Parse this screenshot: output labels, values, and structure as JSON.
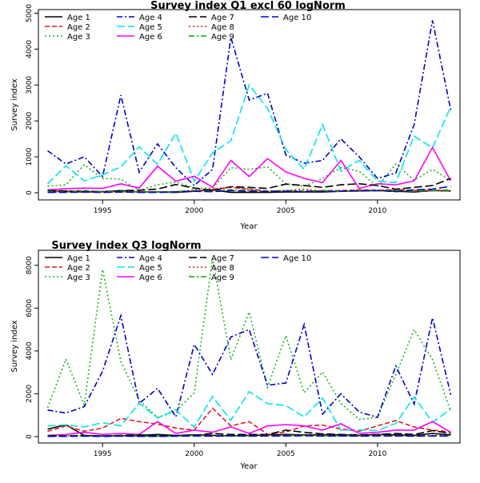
{
  "chart_data": [
    {
      "type": "line",
      "title": "Survey index Q1 excl 60 logNorm",
      "xlabel": "Year",
      "ylabel": "Survey index",
      "xlim": [
        1991.5,
        2014.5
      ],
      "ylim": [
        -200,
        5100
      ],
      "xticks": [
        1995,
        2000,
        2005,
        2010
      ],
      "yticks": [
        0,
        1000,
        2000,
        3000,
        4000,
        5000
      ],
      "legend_position": "top-left",
      "x": [
        1992,
        1993,
        1994,
        1995,
        1996,
        1997,
        1998,
        1999,
        2000,
        2001,
        2002,
        2003,
        2004,
        2005,
        2006,
        2007,
        2008,
        2009,
        2010,
        2011,
        2012,
        2013,
        2014
      ],
      "series": [
        {
          "name": "Age 1",
          "color": "#000000",
          "dash": "solid",
          "values": [
            50,
            40,
            20,
            30,
            60,
            20,
            20,
            10,
            40,
            80,
            10,
            10,
            10,
            20,
            20,
            20,
            40,
            50,
            60,
            40,
            20,
            60,
            50
          ]
        },
        {
          "name": "Age 2",
          "color": "#e41a1c",
          "dash": "dashed",
          "values": [
            40,
            40,
            60,
            20,
            40,
            30,
            20,
            30,
            50,
            100,
            150,
            100,
            50,
            40,
            50,
            60,
            60,
            80,
            70,
            90,
            70,
            60,
            80
          ]
        },
        {
          "name": "Age 3",
          "color": "#1eb41e",
          "dash": "dotted",
          "values": [
            180,
            220,
            780,
            400,
            380,
            60,
            220,
            300,
            130,
            130,
            700,
            650,
            720,
            250,
            180,
            400,
            700,
            600,
            160,
            800,
            350,
            650,
            330
          ]
        },
        {
          "name": "Age 4",
          "color": "#0000cd",
          "dash": "dashdot",
          "values": [
            1170,
            800,
            1000,
            450,
            2720,
            570,
            1360,
            700,
            200,
            650,
            4320,
            2580,
            2770,
            1050,
            820,
            900,
            1500,
            1000,
            400,
            550,
            1900,
            4800,
            2300
          ]
        },
        {
          "name": "Age 5",
          "color": "#00e5ee",
          "dash": "longdash",
          "values": [
            250,
            750,
            330,
            500,
            720,
            1280,
            790,
            1660,
            320,
            1110,
            1450,
            3000,
            2350,
            1200,
            650,
            1900,
            600,
            900,
            330,
            280,
            1580,
            1250,
            2400
          ]
        },
        {
          "name": "Age 6",
          "color": "#ff00ff",
          "dash": "solid",
          "values": [
            80,
            110,
            130,
            120,
            250,
            130,
            740,
            320,
            460,
            150,
            900,
            450,
            950,
            580,
            400,
            280,
            900,
            120,
            250,
            220,
            330,
            1260,
            330
          ]
        },
        {
          "name": "Age 7",
          "color": "#000000",
          "dash": "longdash",
          "values": [
            60,
            50,
            30,
            20,
            60,
            70,
            100,
            230,
            130,
            60,
            170,
            150,
            120,
            240,
            200,
            150,
            220,
            250,
            200,
            100,
            150,
            200,
            400
          ]
        },
        {
          "name": "Age 8",
          "color": "#cc2222",
          "dash": "dotted",
          "values": [
            20,
            20,
            40,
            10,
            20,
            20,
            20,
            20,
            80,
            40,
            160,
            100,
            40,
            60,
            100,
            40,
            40,
            60,
            70,
            80,
            40,
            80,
            50
          ]
        },
        {
          "name": "Age 9",
          "color": "#00aa00",
          "dash": "dashdot",
          "values": [
            40,
            20,
            60,
            30,
            40,
            20,
            20,
            30,
            60,
            40,
            80,
            60,
            40,
            60,
            40,
            60,
            40,
            60,
            60,
            60,
            40,
            60,
            60
          ]
        },
        {
          "name": "Age 10",
          "color": "#0000cd",
          "dash": "longdash",
          "values": [
            10,
            10,
            20,
            10,
            20,
            10,
            10,
            20,
            40,
            30,
            60,
            40,
            30,
            40,
            30,
            30,
            40,
            60,
            60,
            30,
            80,
            100,
            180
          ]
        }
      ]
    },
    {
      "type": "line",
      "title": "Survey index Q3 logNorm",
      "xlabel": "Year",
      "ylabel": "Survey index",
      "xlim": [
        1991.5,
        2014.5
      ],
      "ylim": [
        -300,
        8700
      ],
      "xticks": [
        1995,
        2000,
        2005,
        2010
      ],
      "yticks": [
        0,
        2000,
        4000,
        6000,
        8000
      ],
      "legend_position": "top-left",
      "x": [
        1992,
        1993,
        1994,
        1995,
        1996,
        1997,
        1998,
        1999,
        2000,
        2001,
        2002,
        2003,
        2004,
        2005,
        2006,
        2007,
        2008,
        2009,
        2010,
        2011,
        2012,
        2013,
        2014
      ],
      "series": [
        {
          "name": "Age 1",
          "color": "#000000",
          "dash": "solid",
          "values": [
            350,
            550,
            50,
            30,
            40,
            60,
            100,
            50,
            80,
            60,
            40,
            60,
            80,
            100,
            80,
            90,
            80,
            60,
            100,
            80,
            60,
            150,
            80
          ]
        },
        {
          "name": "Age 2",
          "color": "#e41a1c",
          "dash": "dashed",
          "values": [
            250,
            500,
            250,
            400,
            850,
            700,
            580,
            400,
            300,
            1320,
            500,
            700,
            100,
            220,
            500,
            540,
            350,
            250,
            500,
            750,
            450,
            300,
            220
          ]
        },
        {
          "name": "Age 3",
          "color": "#1eb41e",
          "dash": "dotted",
          "values": [
            1350,
            3620,
            1470,
            7800,
            3500,
            1700,
            900,
            1180,
            2050,
            8320,
            3600,
            5820,
            2300,
            4720,
            2050,
            3020,
            1550,
            800,
            900,
            2900,
            5000,
            3600,
            1170
          ]
        },
        {
          "name": "Age 4",
          "color": "#0000cd",
          "dash": "dashdot",
          "values": [
            1240,
            1100,
            1400,
            3050,
            5650,
            1550,
            2250,
            920,
            4300,
            2900,
            4650,
            5000,
            2400,
            2500,
            5240,
            1050,
            2000,
            1150,
            900,
            3300,
            1520,
            5550,
            1950
          ]
        },
        {
          "name": "Age 5",
          "color": "#00e5ee",
          "dash": "longdash",
          "values": [
            500,
            550,
            450,
            650,
            500,
            1560,
            870,
            1250,
            440,
            1870,
            760,
            2100,
            1540,
            1450,
            920,
            1800,
            300,
            310,
            280,
            620,
            1850,
            670,
            1280
          ]
        },
        {
          "name": "Age 6",
          "color": "#ff00ff",
          "dash": "solid",
          "values": [
            50,
            100,
            200,
            100,
            150,
            100,
            700,
            150,
            300,
            200,
            450,
            150,
            500,
            560,
            500,
            300,
            600,
            150,
            200,
            300,
            300,
            700,
            200
          ]
        },
        {
          "name": "Age 7",
          "color": "#000000",
          "dash": "longdash",
          "values": [
            50,
            40,
            50,
            30,
            60,
            80,
            50,
            30,
            60,
            150,
            100,
            100,
            100,
            300,
            200,
            130,
            100,
            80,
            100,
            150,
            100,
            280,
            150
          ]
        },
        {
          "name": "Age 8",
          "color": "#cc2222",
          "dash": "dotted",
          "values": [
            30,
            30,
            50,
            20,
            40,
            30,
            20,
            30,
            60,
            50,
            40,
            50,
            60,
            60,
            100,
            80,
            60,
            40,
            80,
            60,
            50,
            60,
            60
          ]
        },
        {
          "name": "Age 9",
          "color": "#00aa00",
          "dash": "dashdot",
          "values": [
            20,
            20,
            30,
            20,
            30,
            20,
            20,
            20,
            40,
            30,
            40,
            30,
            40,
            40,
            60,
            40,
            40,
            30,
            40,
            40,
            30,
            40,
            40
          ]
        },
        {
          "name": "Age 10",
          "color": "#0000cd",
          "dash": "longdash",
          "values": [
            10,
            10,
            20,
            10,
            20,
            10,
            10,
            20,
            30,
            20,
            30,
            20,
            30,
            30,
            40,
            30,
            30,
            20,
            30,
            30,
            20,
            30,
            30
          ]
        }
      ]
    }
  ]
}
